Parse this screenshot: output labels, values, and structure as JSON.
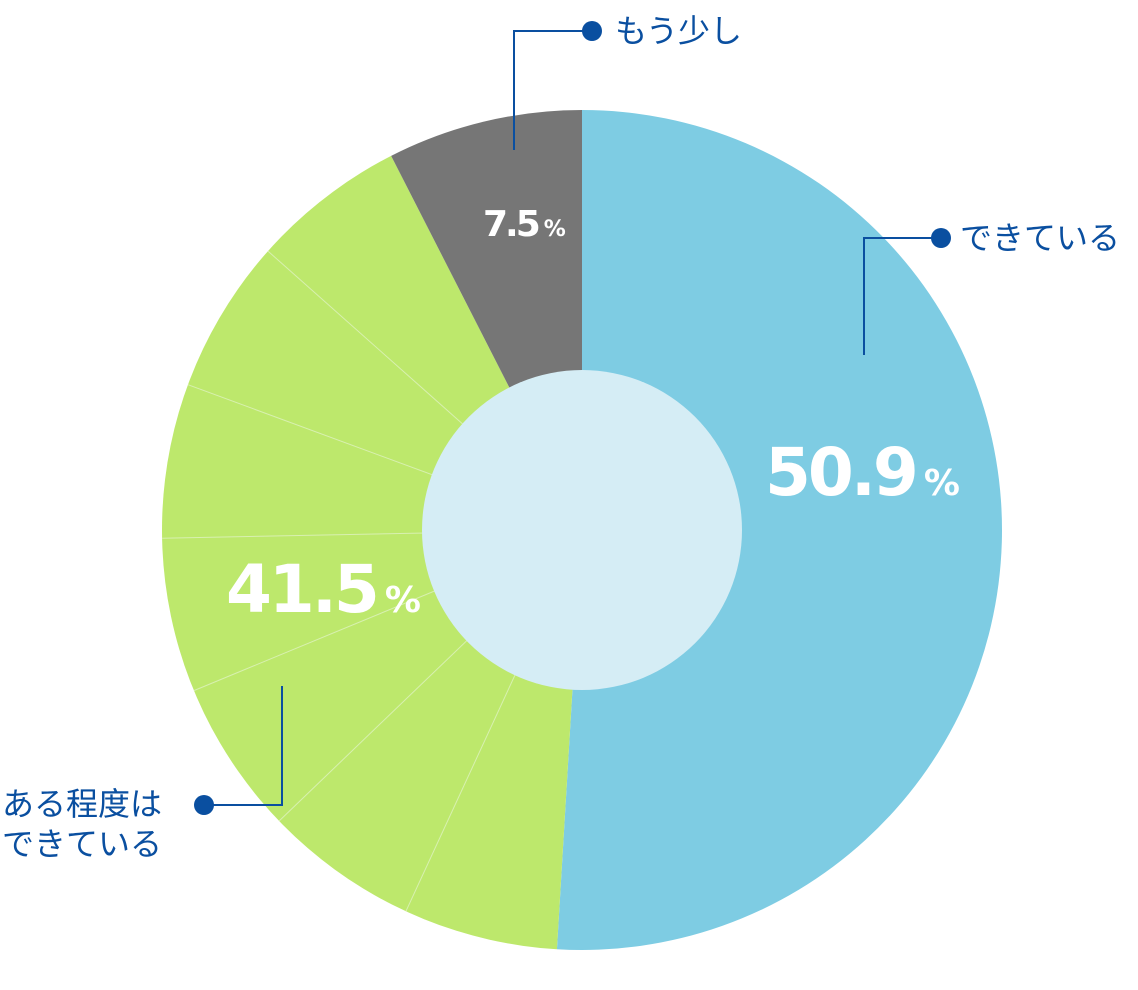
{
  "chart_data": {
    "type": "pie",
    "donut": true,
    "slices": [
      {
        "label": "できている",
        "value": 50.9,
        "display": "50.9",
        "color": "#7ecce3"
      },
      {
        "label_lines": [
          "ある程度は",
          "できている"
        ],
        "value": 41.5,
        "display": "41.5",
        "color": "#bde86c"
      },
      {
        "label": "もう少し",
        "value": 7.5,
        "display": "7.5",
        "color": "#767676"
      }
    ],
    "unit": "%",
    "center_color": "#d5edf5",
    "label_color": "#0a4fa0",
    "start": "top",
    "direction": "clockwise"
  }
}
